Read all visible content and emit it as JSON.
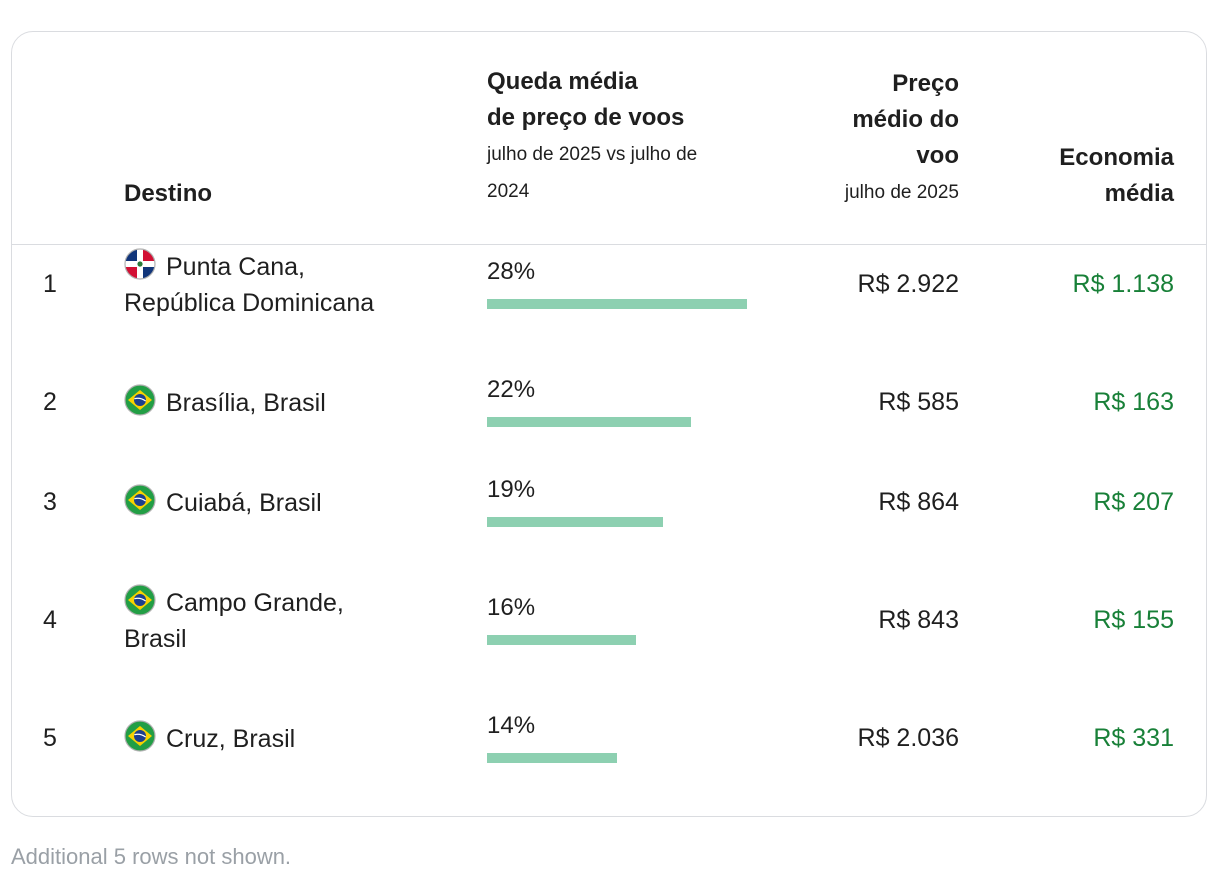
{
  "table": {
    "headers": {
      "destination": "Destino",
      "drop_title_line1": "Queda média",
      "drop_title_line2": "de preço de voos",
      "drop_sub_line1": "julho de 2025 vs julho de",
      "drop_sub_line2": "2024",
      "price_title_line1": "Preço",
      "price_title_line2": "médio do",
      "price_title_line3": "voo",
      "price_sub": "julho de 2025",
      "savings_title_line1": "Economia",
      "savings_title_line2": "média"
    },
    "rows": [
      {
        "rank": "1",
        "flag": "dominican-republic-flag-icon",
        "destination_line1": "Punta Cana,",
        "destination_line2": "República Dominicana",
        "drop": "28%",
        "drop_value": 28,
        "price": "R$ 2.922",
        "savings": "R$ 1.138"
      },
      {
        "rank": "2",
        "flag": "brazil-flag-icon",
        "destination_line1": "Brasília, Brasil",
        "destination_line2": "",
        "drop": "22%",
        "drop_value": 22,
        "price": "R$ 585",
        "savings": "R$ 163"
      },
      {
        "rank": "3",
        "flag": "brazil-flag-icon",
        "destination_line1": "Cuiabá, Brasil",
        "destination_line2": "",
        "drop": "19%",
        "drop_value": 19,
        "price": "R$ 864",
        "savings": "R$ 207"
      },
      {
        "rank": "4",
        "flag": "brazil-flag-icon",
        "destination_line1": "Campo Grande,",
        "destination_line2": "Brasil",
        "drop": "16%",
        "drop_value": 16,
        "price": "R$ 843",
        "savings": "R$ 155"
      },
      {
        "rank": "5",
        "flag": "brazil-flag-icon",
        "destination_line1": "Cruz, Brasil",
        "destination_line2": "",
        "drop": "14%",
        "drop_value": 14,
        "price": "R$ 2.036",
        "savings": "R$ 331"
      }
    ]
  },
  "footnote": "Additional 5 rows not shown.",
  "colors": {
    "bar": "#8dd0b1",
    "savings_text": "#188038",
    "border": "#dadce0",
    "footnote": "#9aa0a6"
  }
}
